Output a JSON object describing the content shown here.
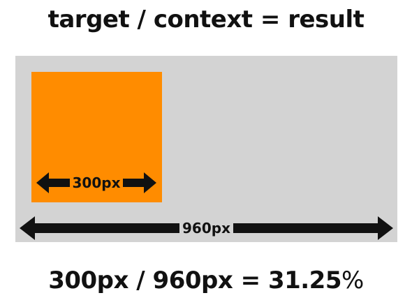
{
  "heading": "target / context = result",
  "target_width_label": "300px",
  "context_width_label": "960px",
  "equation": {
    "expression": "300px / 960px = 31.25",
    "percent_sign": "%"
  },
  "colors": {
    "background": "#ffffff",
    "context": "#d3d3d3",
    "target": "#ff8c00",
    "text_and_arrows": "#111111"
  }
}
